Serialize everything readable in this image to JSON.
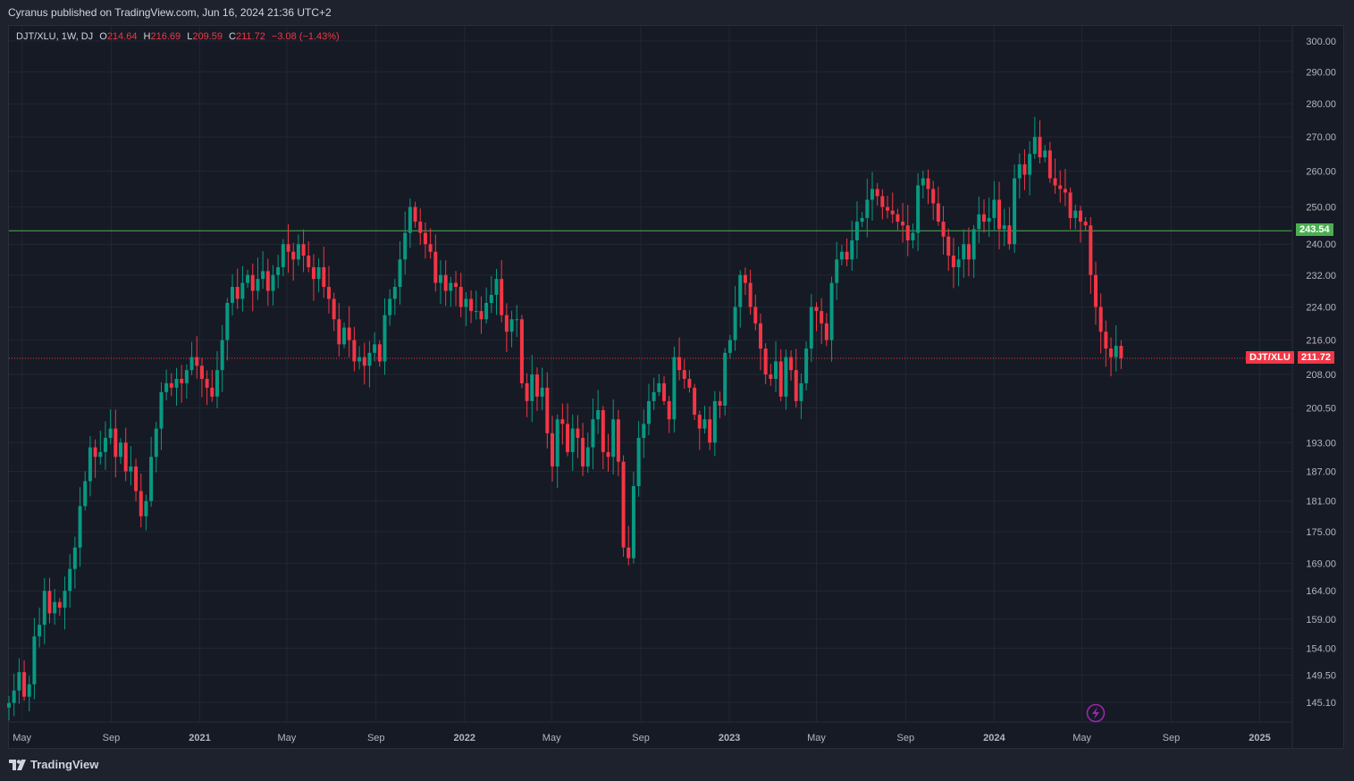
{
  "header": {
    "published_text": "Cyranus published on TradingView.com, Jun 16, 2024 21:36 UTC+2"
  },
  "legend": {
    "symbol": "DJT/XLU, 1W, DJ",
    "o_label": "O",
    "o_value": "214.64",
    "h_label": "H",
    "h_value": "216.69",
    "l_label": "L",
    "l_value": "209.59",
    "c_label": "C",
    "c_value": "211.72",
    "change": "−3.08 (−1.43%)"
  },
  "footer": {
    "brand": "TradingView",
    "logo_icon": "tradingview-logo-icon"
  },
  "badges": {
    "hline_value": "243.54",
    "symbol_tag": "DJT/XLU",
    "last_price": "211.72"
  },
  "colors": {
    "up": "#089981",
    "down": "#f23645",
    "hline": "#4caf50",
    "background": "#161a25",
    "grid": "#232733"
  },
  "chart_data": {
    "type": "candlestick",
    "scale": "log",
    "ylim": [
      142,
      305
    ],
    "y_ticks": [
      "300.00",
      "290.00",
      "280.00",
      "270.00",
      "260.00",
      "250.00",
      "240.00",
      "232.00",
      "224.00",
      "216.00",
      "208.00",
      "200.50",
      "193.00",
      "187.00",
      "181.00",
      "175.00",
      "169.00",
      "164.00",
      "159.00",
      "154.00",
      "149.50",
      "145.10"
    ],
    "x_ticks": [
      "May",
      "Sep",
      "2021",
      "May",
      "Sep",
      "2022",
      "May",
      "Sep",
      "2023",
      "May",
      "Sep",
      "2024",
      "May",
      "Sep",
      "2025"
    ],
    "x_start": "2020-04-13",
    "x_end": "2025-02-15",
    "horizontal_line": 243.54,
    "last_price": 211.72,
    "closes": [
      145,
      147,
      150,
      146,
      148,
      156,
      158,
      164,
      160,
      162,
      161,
      164,
      168,
      172,
      180,
      185,
      192,
      190,
      191,
      194,
      196,
      190,
      193,
      187,
      188,
      183,
      178,
      181,
      190,
      196,
      204,
      206,
      205,
      207,
      206,
      209,
      212,
      210,
      207,
      205,
      203,
      209,
      216,
      225,
      229,
      226,
      230,
      232,
      228,
      231,
      233,
      228,
      232,
      234,
      240,
      238,
      236,
      240,
      237,
      234,
      231,
      234,
      229,
      226,
      221,
      215,
      219,
      216,
      211,
      212,
      210,
      213,
      215,
      211,
      222,
      226,
      229,
      236,
      243,
      250,
      246,
      243,
      240,
      238,
      230,
      232,
      228,
      230,
      229,
      224,
      226,
      223,
      223,
      221,
      225,
      227,
      231,
      222,
      218,
      221,
      221,
      206,
      202,
      208,
      203,
      205,
      195,
      188,
      198,
      197,
      191,
      196,
      194,
      188,
      192,
      198,
      200,
      191,
      190,
      198,
      189,
      172,
      170,
      184,
      194,
      197,
      202,
      204,
      206,
      202,
      198,
      212,
      209,
      207,
      205,
      199,
      196,
      198,
      193,
      202,
      201,
      213,
      216,
      224,
      232,
      230,
      224,
      220,
      214,
      208,
      207,
      211,
      203,
      212,
      209,
      202,
      206,
      214,
      224,
      223,
      220,
      216,
      230,
      236,
      238,
      236,
      241,
      246,
      247,
      252,
      255,
      253,
      250,
      249,
      248,
      246,
      245,
      241,
      243,
      256,
      258,
      255,
      251,
      246,
      242,
      237,
      234,
      236,
      240,
      236,
      244,
      248,
      246,
      247,
      252,
      244,
      245,
      240,
      258,
      262,
      259,
      265,
      270,
      264,
      266,
      258,
      256,
      255,
      254,
      247,
      249,
      246,
      245,
      232,
      224,
      218,
      214,
      212,
      214.64,
      211.72
    ]
  }
}
